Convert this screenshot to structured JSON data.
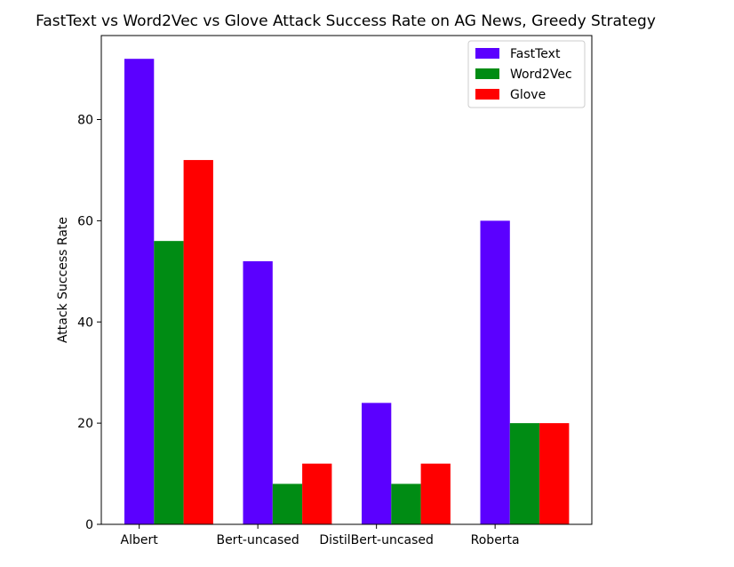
{
  "chart_data": {
    "type": "bar",
    "title": "FastText vs Word2Vec vs Glove Attack Success Rate on AG News, Greedy Strategy",
    "xlabel": "",
    "ylabel": "Attack Success Rate",
    "categories": [
      "Albert",
      "Bert-uncased",
      "DistilBert-uncased",
      "Roberta"
    ],
    "series": [
      {
        "name": "FastText",
        "color": "#5b00ff",
        "values": [
          92,
          52,
          24,
          60
        ]
      },
      {
        "name": "Word2Vec",
        "color": "#008c14",
        "values": [
          56,
          8,
          8,
          20
        ]
      },
      {
        "name": "Glove",
        "color": "#ff0000",
        "values": [
          72,
          12,
          12,
          20
        ]
      }
    ],
    "ylim": [
      0,
      96.6
    ],
    "yticks": [
      0,
      20,
      40,
      60,
      80
    ],
    "grid": false,
    "legend_position": "top-right"
  }
}
